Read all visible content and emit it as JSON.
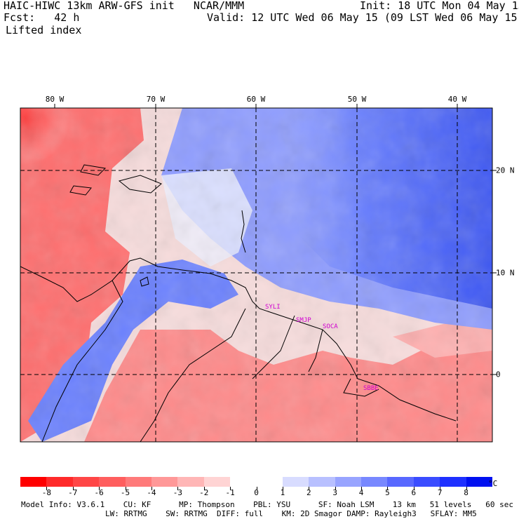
{
  "header": {
    "line1_left": "HAIC-HIWC 13km ARW-GFS init   NCAR/MMM",
    "line1_right": "Init: 18 UTC Mon 04 May 15",
    "line2_left": "Fcst:   42 h",
    "line2_right": "Valid: 12 UTC Wed 06 May 15 (09 LST Wed 06 May 15)",
    "line3_left": "Lifted index"
  },
  "map": {
    "longitude_labels": [
      "80 W",
      "70 W",
      "60 W",
      "50 W",
      "40 W"
    ],
    "latitude_labels": [
      "20 N",
      "10 N",
      "0"
    ],
    "stations": [
      "SYLI",
      "SMJP",
      "SOCA",
      "SBBE"
    ],
    "station_color": "#d000d0",
    "negative_color": "#ff2020",
    "positive_color": "#1030e0"
  },
  "colorbar": {
    "tick_labels": [
      "-8",
      "-7",
      "-6",
      "-5",
      "-4",
      "-3",
      "-2",
      "-1",
      "0",
      "1",
      "2",
      "3",
      "4",
      "5",
      "6",
      "7",
      "8"
    ],
    "unit": "°C",
    "colors": [
      "#ff0000",
      "#ff2a2a",
      "#ff4646",
      "#ff5e5e",
      "#ff7a7a",
      "#ff9898",
      "#ffb6b6",
      "#ffd4d4",
      "#ffffff",
      "#ffffff",
      "#d8dcff",
      "#b8c0ff",
      "#98a4ff",
      "#7888ff",
      "#5868ff",
      "#3a4cff",
      "#1e30ff",
      "#0010f0"
    ]
  },
  "footer": {
    "line1": "Model Info: V3.6.1    CU: KF      MP: Thompson    PBL: YSU      SF: Noah LSM    13 km   51 levels   60 sec",
    "line2": "LW: RRTMG    SW: RRTMG  DIFF: full    KM: 2D Smagor DAMP: Rayleigh3   SFLAY: MM5"
  }
}
